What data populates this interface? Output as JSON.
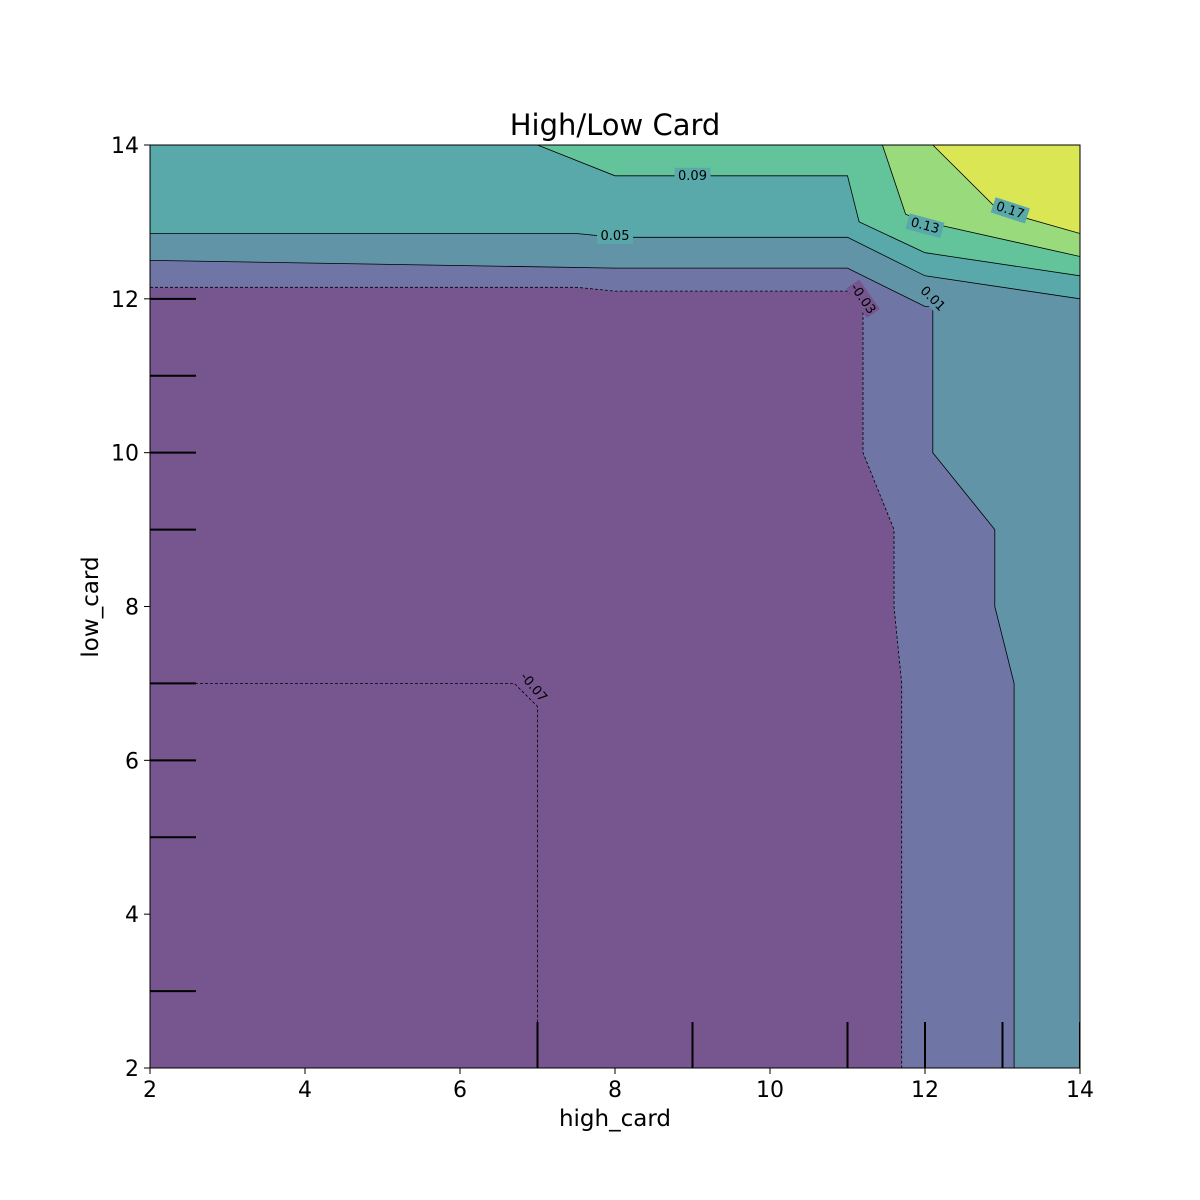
{
  "chart_data": {
    "type": "contour",
    "title": "High/Low Card",
    "xlabel": "high_card",
    "ylabel": "low_card",
    "xlim": [
      2,
      14
    ],
    "ylim": [
      2,
      14
    ],
    "xticks": [
      2,
      4,
      6,
      8,
      10,
      12,
      14
    ],
    "yticks": [
      2,
      4,
      6,
      8,
      10,
      12,
      14
    ],
    "grid": false,
    "colormap": "viridis",
    "level_colors": {
      "band_neg07_neg03": "#77558f",
      "band_neg03_01": "#6f76a6",
      "band_01_05": "#6294a8",
      "band_05_09": "#5aa9aa",
      "band_09_13": "#63c49b",
      "band_13_17": "#98da7c",
      "band_17_up": "#dbe654"
    },
    "contour_lines": [
      {
        "value": -0.07,
        "label": "-0.07",
        "path": [
          [
            2,
            7
          ],
          [
            6.7,
            7
          ],
          [
            7,
            6.7
          ],
          [
            7,
            2
          ]
        ]
      },
      {
        "value": -0.03,
        "label": "-0.03",
        "path": [
          [
            2,
            12.15
          ],
          [
            7.5,
            12.15
          ],
          [
            8,
            12.1
          ],
          [
            11,
            12.1
          ],
          [
            11.2,
            11.9
          ],
          [
            11.2,
            10
          ],
          [
            11.6,
            9
          ],
          [
            11.6,
            8
          ],
          [
            11.7,
            7
          ],
          [
            11.7,
            2
          ]
        ]
      },
      {
        "value": 0.01,
        "label": "0.01",
        "path": [
          [
            2,
            12.5
          ],
          [
            8,
            12.4
          ],
          [
            11,
            12.4
          ],
          [
            12,
            11.9
          ],
          [
            12.1,
            11.9
          ],
          [
            12.1,
            10
          ],
          [
            12.9,
            9
          ],
          [
            12.9,
            8
          ],
          [
            13.15,
            7
          ],
          [
            13.15,
            2
          ]
        ]
      },
      {
        "value": 0.05,
        "label": "0.05",
        "path": [
          [
            2,
            12.85
          ],
          [
            7.5,
            12.85
          ],
          [
            8,
            12.8
          ],
          [
            11,
            12.8
          ],
          [
            12,
            12.3
          ],
          [
            14,
            12
          ]
        ]
      },
      {
        "value": 0.09,
        "label": "0.09",
        "path": [
          [
            7,
            14
          ],
          [
            8,
            13.6
          ],
          [
            11,
            13.6
          ],
          [
            11.15,
            13
          ],
          [
            12,
            12.6
          ],
          [
            14,
            12.3
          ]
        ]
      },
      {
        "value": 0.13,
        "label": "0.13",
        "path": [
          [
            11.45,
            14
          ],
          [
            11.75,
            13.1
          ],
          [
            12,
            13
          ],
          [
            14,
            12.55
          ]
        ]
      },
      {
        "value": 0.17,
        "label": "0.17",
        "path": [
          [
            12.1,
            14
          ],
          [
            12.95,
            13.15
          ],
          [
            14,
            12.85
          ]
        ]
      }
    ],
    "rug_x": [
      7,
      9,
      11,
      12,
      13,
      14
    ],
    "rug_y": [
      3,
      5,
      6,
      7,
      9,
      10,
      11,
      12
    ]
  }
}
